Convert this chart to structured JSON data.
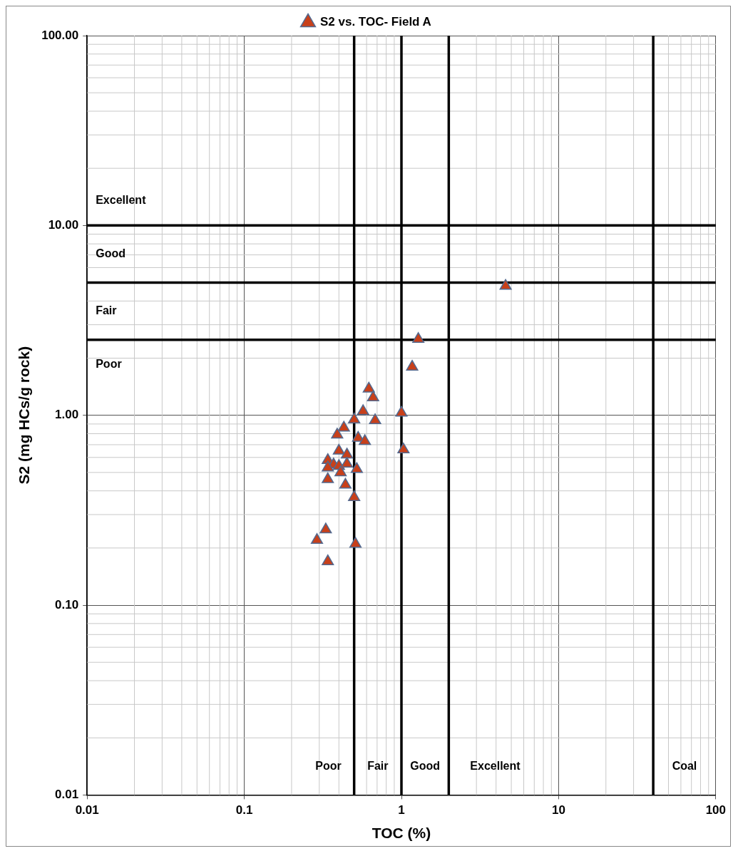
{
  "chart_data": {
    "type": "scatter",
    "xlabel": "TOC (%)",
    "ylabel": "S2 (mg HCs/g rock)",
    "log": "xy",
    "grid": true,
    "legend": "top",
    "marker": "triangle",
    "xlim": [
      0.01,
      100
    ],
    "xticks": [
      0.01,
      0.1,
      1,
      10,
      100
    ],
    "ylim": [
      0.01,
      100
    ],
    "yticks": [
      {
        "value": 0.01,
        "label": "0.01"
      },
      {
        "value": 0.1,
        "label": "0.10"
      },
      {
        "value": 1,
        "label": "1.00"
      },
      {
        "value": 10,
        "label": "10.00"
      },
      {
        "value": 100,
        "label": "100.00"
      }
    ],
    "series": [
      {
        "name": "S2 vs. TOC- Field A",
        "color": "#c8401a",
        "x": [
          4.6,
          1.28,
          1.17,
          0.62,
          0.66,
          0.57,
          0.68,
          0.5,
          1.0,
          0.43,
          0.39,
          0.53,
          0.585,
          1.03,
          0.4,
          0.45,
          0.34,
          0.37,
          0.45,
          0.34,
          0.4,
          0.52,
          0.41,
          0.34,
          0.44,
          0.5,
          0.33,
          0.29,
          0.51,
          0.34
        ],
        "values": [
          4.8,
          2.52,
          1.8,
          1.38,
          1.24,
          1.05,
          0.94,
          0.95,
          1.03,
          0.86,
          0.79,
          0.76,
          0.73,
          0.66,
          0.65,
          0.62,
          0.58,
          0.55,
          0.555,
          0.53,
          0.54,
          0.52,
          0.5,
          0.46,
          0.43,
          0.37,
          0.25,
          0.22,
          0.21,
          0.17
        ]
      }
    ],
    "ref_lines": [
      {
        "axis": "x",
        "value": 0.5
      },
      {
        "axis": "x",
        "value": 1
      },
      {
        "axis": "x",
        "value": 2
      },
      {
        "axis": "x",
        "value": 40
      },
      {
        "axis": "y",
        "value": 2.5
      },
      {
        "axis": "y",
        "value": 5
      },
      {
        "axis": "y",
        "value": 10
      }
    ],
    "annotations": [
      "Excellent",
      "Good",
      "Fair",
      "Poor",
      "Poor",
      "Fair",
      "Good",
      "Excellent",
      "Coal"
    ]
  }
}
